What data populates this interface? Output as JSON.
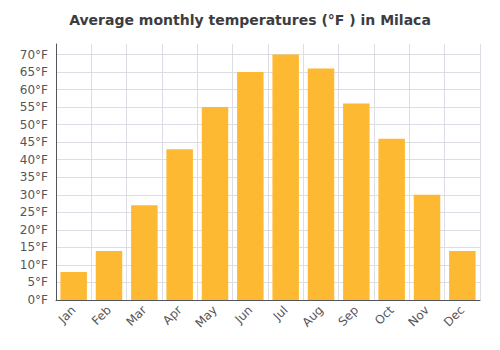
{
  "chart_data": {
    "type": "bar",
    "title": "Average monthly temperatures (°F ) in Milaca",
    "categories": [
      "Jan",
      "Feb",
      "Mar",
      "Apr",
      "May",
      "Jun",
      "Jul",
      "Aug",
      "Sep",
      "Oct",
      "Nov",
      "Dec"
    ],
    "values": [
      8,
      14,
      27,
      43,
      55,
      65,
      70,
      66,
      56,
      46,
      30,
      14
    ],
    "color": "#FDB931",
    "ylim": [
      0,
      73
    ],
    "yticks": [
      {
        "value": 0,
        "label": "0°F"
      },
      {
        "value": 5,
        "label": "5°F"
      },
      {
        "value": 10,
        "label": "10°F"
      },
      {
        "value": 15,
        "label": "15°F"
      },
      {
        "value": 20,
        "label": "20°F"
      },
      {
        "value": 25,
        "label": "25°F"
      },
      {
        "value": 30,
        "label": "30°F"
      },
      {
        "value": 35,
        "label": "35°F"
      },
      {
        "value": 40,
        "label": "40°F"
      },
      {
        "value": 45,
        "label": "45°F"
      },
      {
        "value": 50,
        "label": "50°F"
      },
      {
        "value": 55,
        "label": "55°F"
      },
      {
        "value": 60,
        "label": "60°F"
      },
      {
        "value": 65,
        "label": "65°F"
      },
      {
        "value": 70,
        "label": "70°F"
      }
    ],
    "grid": true
  }
}
